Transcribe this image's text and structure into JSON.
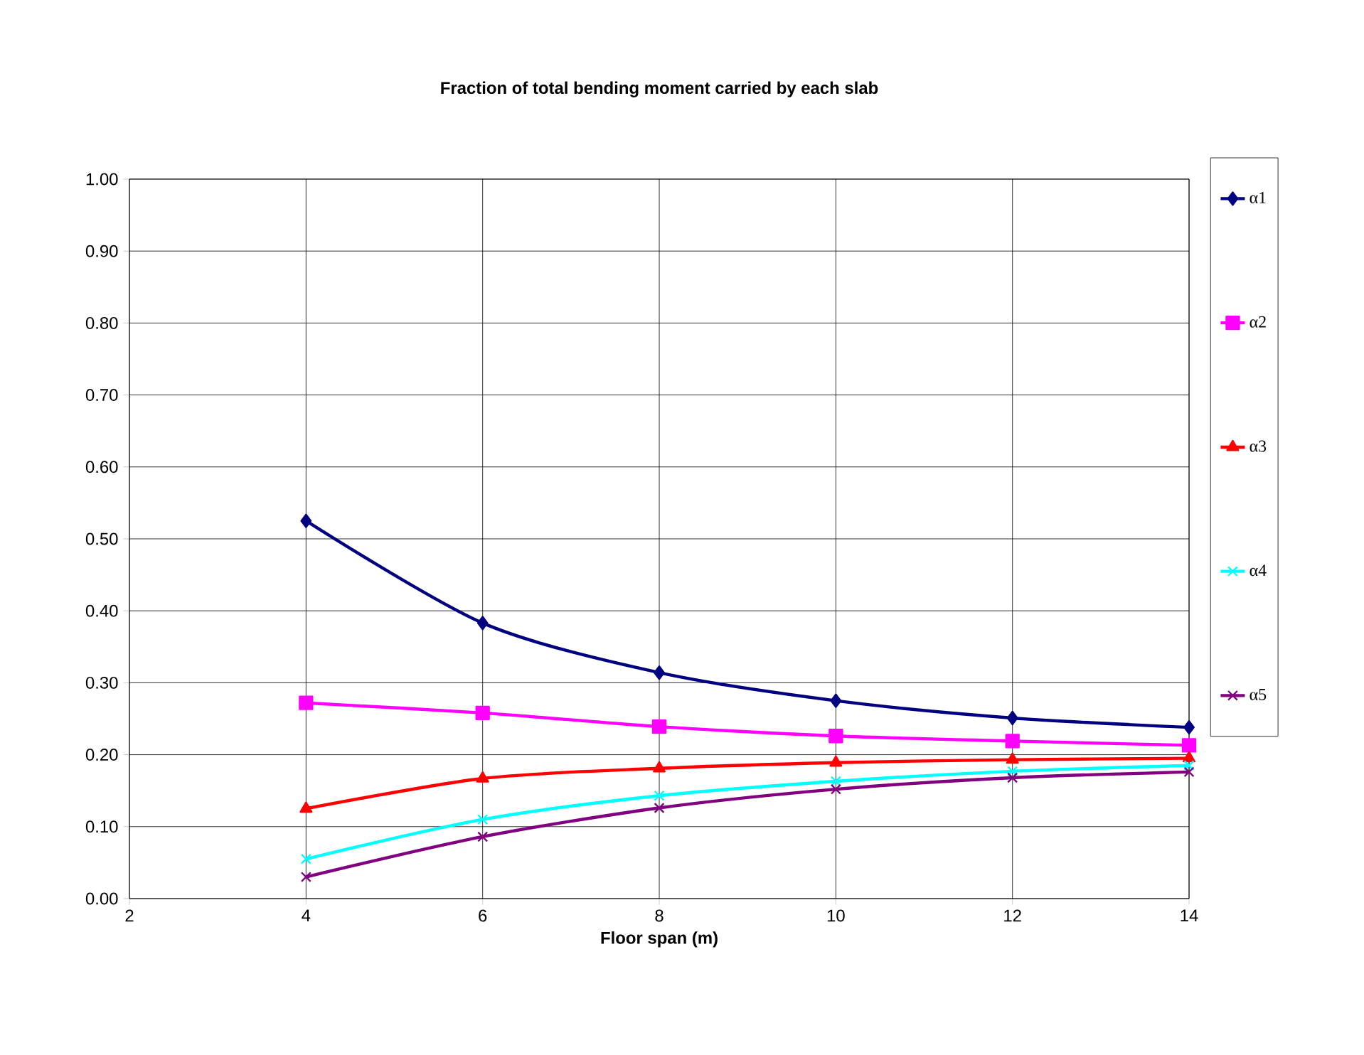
{
  "chart_data": {
    "type": "line",
    "title": "Fraction of total bending moment carried by each slab",
    "xlabel": "Floor span (m)",
    "x": [
      4,
      6,
      8,
      10,
      12,
      14
    ],
    "series": [
      {
        "name": "α1",
        "color": "#000080",
        "marker": "diamond",
        "values": [
          0.525,
          0.383,
          0.314,
          0.275,
          0.251,
          0.238
        ]
      },
      {
        "name": "α2",
        "color": "#ff00ff",
        "marker": "square",
        "values": [
          0.272,
          0.258,
          0.239,
          0.226,
          0.219,
          0.213
        ]
      },
      {
        "name": "α3",
        "color": "#ff0000",
        "marker": "triangle",
        "values": [
          0.125,
          0.167,
          0.181,
          0.189,
          0.193,
          0.195
        ]
      },
      {
        "name": "α4",
        "color": "#00ffff",
        "marker": "cross",
        "values": [
          0.055,
          0.11,
          0.143,
          0.163,
          0.177,
          0.185
        ]
      },
      {
        "name": "α5",
        "color": "#800080",
        "marker": "cross",
        "values": [
          0.03,
          0.086,
          0.126,
          0.152,
          0.168,
          0.176
        ]
      }
    ],
    "xlim": [
      2,
      14
    ],
    "xticks": [
      2,
      4,
      6,
      8,
      10,
      12,
      14
    ],
    "ylim": [
      0,
      1
    ],
    "yticks": [
      {
        "value": 0,
        "label": "0.00"
      },
      {
        "value": 0.1,
        "label": "0.10"
      },
      {
        "value": 0.2,
        "label": "0.20"
      },
      {
        "value": 0.3,
        "label": "0.30"
      },
      {
        "value": 0.4,
        "label": "0.40"
      },
      {
        "value": 0.5,
        "label": "0.50"
      },
      {
        "value": 0.6,
        "label": "0.60"
      },
      {
        "value": 0.7,
        "label": "0.70"
      },
      {
        "value": 0.8,
        "label": "0.80"
      },
      {
        "value": 0.9,
        "label": "0.90"
      },
      {
        "value": 1,
        "label": "1.00"
      }
    ],
    "grid": true,
    "legend": "right",
    "line_style": "solid"
  }
}
